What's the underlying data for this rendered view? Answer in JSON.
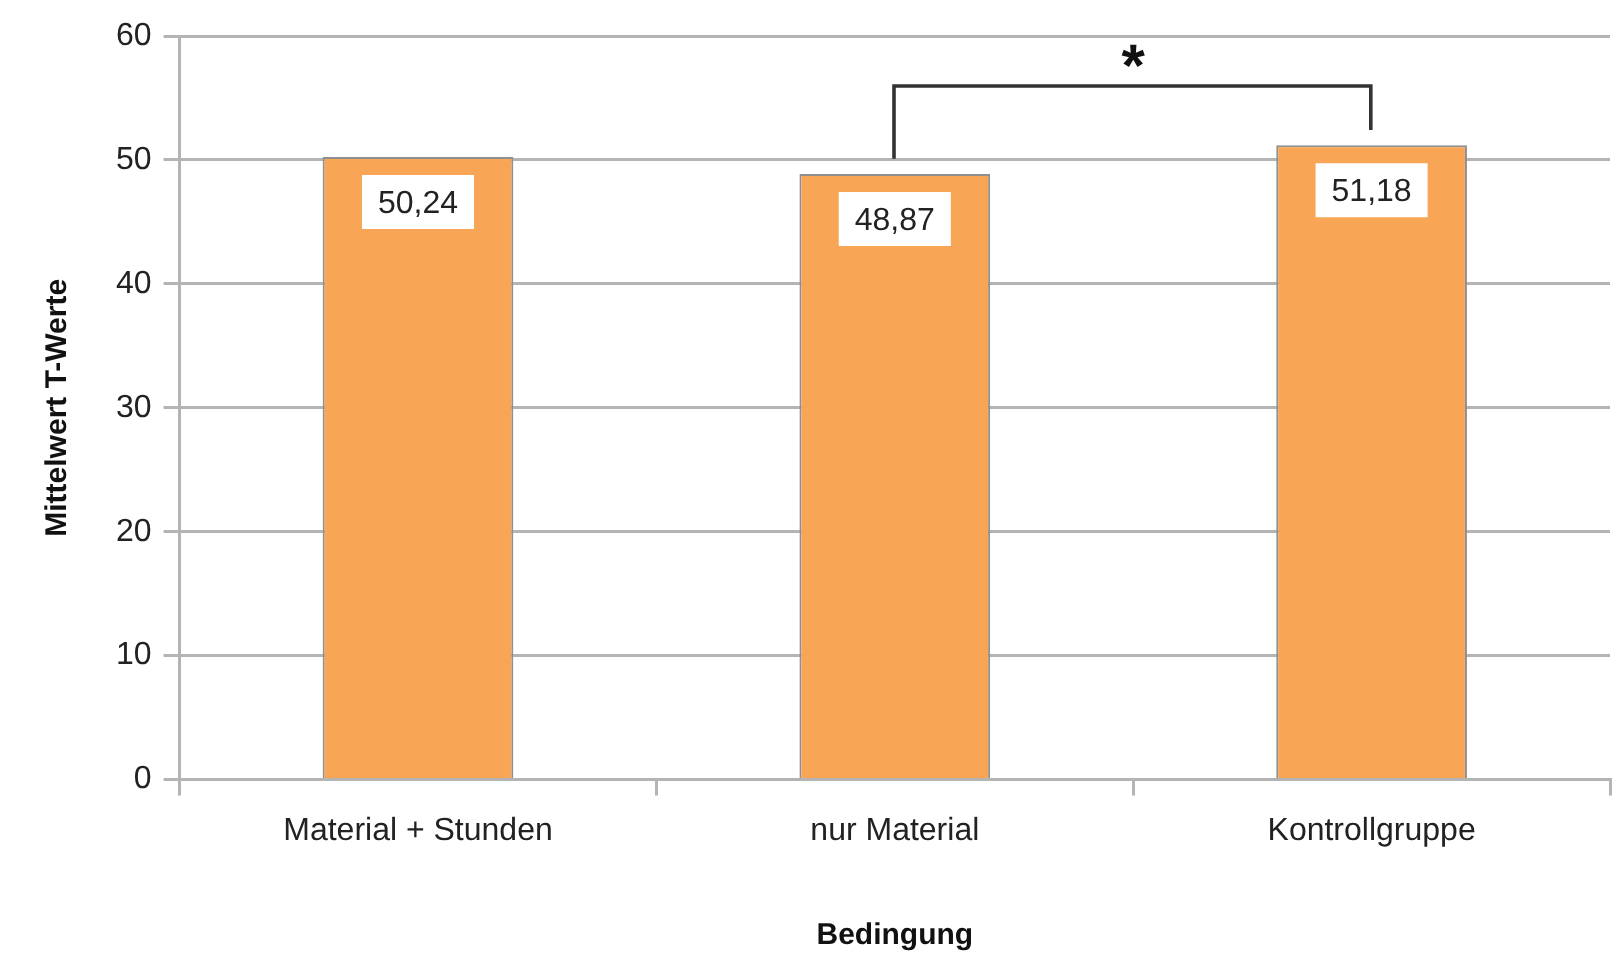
{
  "chart_data": {
    "type": "bar",
    "xlabel": "Bedingung",
    "ylabel": "Mittelwert T-Werte",
    "categories": [
      "Material + Stunden",
      "nur Material",
      "Kontrollgruppe"
    ],
    "values": [
      50.24,
      48.87,
      51.18
    ],
    "value_labels": [
      "50,24",
      "48,87",
      "51,18"
    ],
    "color": "#f8a655",
    "ylim": [
      0,
      60
    ],
    "yticks": [
      0,
      10,
      20,
      30,
      40,
      50,
      60
    ],
    "grid": "y",
    "annotations": [
      "*"
    ]
  }
}
